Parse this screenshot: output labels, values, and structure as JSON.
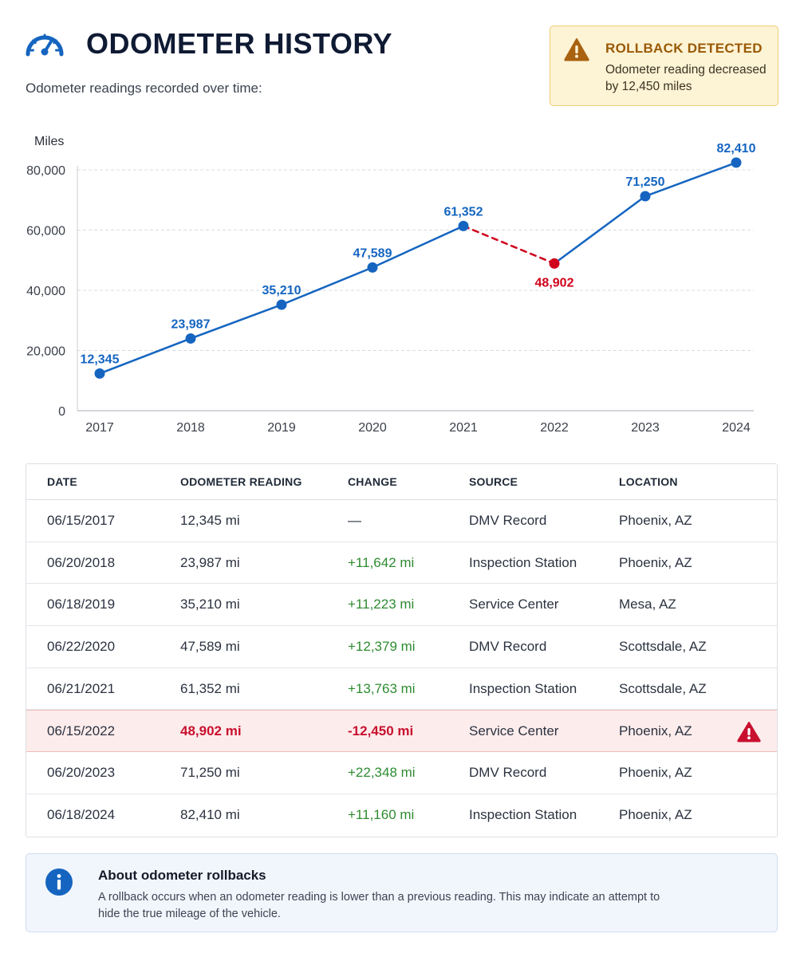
{
  "header": {
    "title": "ODOMETER HISTORY",
    "subtitle": "Odometer readings recorded over time:",
    "icon": "speedometer-icon"
  },
  "alert": {
    "title": "ROLLBACK DETECTED",
    "text": "Odometer reading decreased by 12,450 miles",
    "icon": "warning-triangle-icon",
    "colors": {
      "background": "#fdf3d5",
      "accent": "#9a5a05"
    }
  },
  "chart_data": {
    "type": "line",
    "ylabel": "Miles",
    "x": [
      "2017",
      "2018",
      "2019",
      "2020",
      "2021",
      "2022",
      "2023",
      "2024"
    ],
    "values": [
      12345,
      23987,
      35210,
      47589,
      61352,
      48902,
      71250,
      82410
    ],
    "value_labels": [
      "12,345",
      "23,987",
      "35,210",
      "47,589",
      "61,352",
      "48,902",
      "71,250",
      "82,410"
    ],
    "rollback_index": 5,
    "ylim": [
      0,
      80000
    ],
    "yticks": [
      0,
      20000,
      40000,
      60000,
      80000
    ],
    "ytick_labels": [
      "0",
      "20,000",
      "40,000",
      "60,000",
      "80,000"
    ],
    "grid": true,
    "colors": {
      "series": "#1565c0",
      "rollback": "#d0021b"
    }
  },
  "table": {
    "columns": [
      "DATE",
      "ODOMETER READING",
      "CHANGE",
      "SOURCE",
      "LOCATION"
    ],
    "rows": [
      {
        "date": "06/15/2017",
        "reading": "12,345 mi",
        "change": "—",
        "source": "DMV Record",
        "location": "Phoenix, AZ"
      },
      {
        "date": "06/20/2018",
        "reading": "23,987 mi",
        "change": "+11,642 mi",
        "source": "Inspection Station",
        "location": "Phoenix, AZ"
      },
      {
        "date": "06/18/2019",
        "reading": "35,210 mi",
        "change": "+11,223 mi",
        "source": "Service Center",
        "location": "Mesa, AZ"
      },
      {
        "date": "06/22/2020",
        "reading": "47,589 mi",
        "change": "+12,379 mi",
        "source": "DMV Record",
        "location": "Scottsdale, AZ"
      },
      {
        "date": "06/21/2021",
        "reading": "61,352 mi",
        "change": "+13,763 mi",
        "source": "Inspection Station",
        "location": "Scottsdale, AZ"
      },
      {
        "date": "06/15/2022",
        "reading": "48,902 mi",
        "change": "-12,450 mi",
        "source": "Service Center",
        "location": "Phoenix, AZ"
      },
      {
        "date": "06/20/2023",
        "reading": "71,250 mi",
        "change": "+22,348 mi",
        "source": "DMV Record",
        "location": "Phoenix, AZ"
      },
      {
        "date": "06/18/2024",
        "reading": "82,410 mi",
        "change": "+11,160 mi",
        "source": "Inspection Station",
        "location": "Phoenix, AZ"
      }
    ],
    "flagged_row_index": 5,
    "flag_icon": "warning-triangle-icon"
  },
  "info": {
    "title": "About odometer rollbacks",
    "text": "A rollback occurs when an odometer reading is lower than a previous reading. This may indicate an attempt to hide the true mileage of the vehicle.",
    "icon": "info-circle-icon"
  }
}
